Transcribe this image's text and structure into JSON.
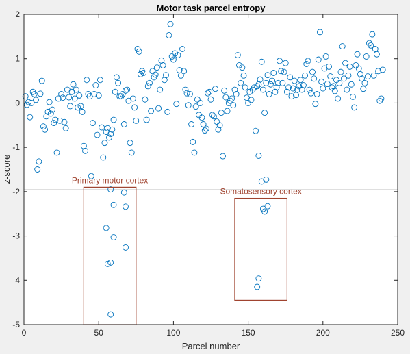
{
  "chart_data": {
    "type": "scatter",
    "title": "Motor task parcel entropy",
    "xlabel": "Parcel number",
    "ylabel": "z-score",
    "xlim": [
      0,
      250
    ],
    "ylim": [
      -5,
      2
    ],
    "xticks": [
      "0",
      "50",
      "100",
      "150",
      "200",
      "250"
    ],
    "yticks": [
      "2",
      "1",
      "0",
      "-1",
      "-2",
      "-3",
      "-4",
      "-5"
    ],
    "threshold_line": -1.96,
    "grid": false,
    "marker": "open-circle",
    "colors": {
      "marker": "#0072BD",
      "annotation": "#A0432F",
      "threshold": "#808080"
    },
    "annotations": [
      {
        "label": "Primary motor cortex",
        "x_range": [
          40,
          75
        ],
        "y_range": [
          -5,
          -1.9
        ]
      },
      {
        "label": "Somatosensory cortex",
        "x_range": [
          141,
          176
        ],
        "y_range": [
          -2.15,
          -4.45
        ]
      }
    ],
    "series": [
      {
        "points": [
          [
            1,
            0.15
          ],
          [
            2,
            -0.04
          ],
          [
            3,
            0.02
          ],
          [
            4,
            -0.32
          ],
          [
            5,
            0.0
          ],
          [
            6,
            0.25
          ],
          [
            7,
            0.2
          ],
          [
            8,
            0.07
          ],
          [
            9,
            -1.5
          ],
          [
            10,
            -1.32
          ],
          [
            11,
            0.21
          ],
          [
            12,
            0.5
          ],
          [
            13,
            -0.53
          ],
          [
            14,
            -0.6
          ],
          [
            15,
            -0.3
          ],
          [
            16,
            -0.2
          ],
          [
            17,
            0.02
          ],
          [
            18,
            -0.24
          ],
          [
            19,
            -0.15
          ],
          [
            20,
            -0.45
          ],
          [
            21,
            -0.38
          ],
          [
            22,
            -1.12
          ],
          [
            23,
            0.1
          ],
          [
            24,
            -0.4
          ],
          [
            25,
            0.2
          ],
          [
            26,
            0.12
          ],
          [
            27,
            -0.43
          ],
          [
            28,
            -0.57
          ],
          [
            29,
            0.3
          ],
          [
            30,
            0.13
          ],
          [
            31,
            -0.07
          ],
          [
            32,
            0.25
          ],
          [
            33,
            0.42
          ],
          [
            34,
            0.1
          ],
          [
            35,
            0.3
          ],
          [
            36,
            -0.1
          ],
          [
            37,
            0.17
          ],
          [
            38,
            -0.07
          ],
          [
            39,
            -0.2
          ],
          [
            40,
            -0.97
          ],
          [
            41,
            -1.08
          ],
          [
            42,
            0.52
          ],
          [
            43,
            0.2
          ],
          [
            44,
            0.15
          ],
          [
            45,
            -1.65
          ],
          [
            46,
            -0.45
          ],
          [
            47,
            0.2
          ],
          [
            48,
            0.4
          ],
          [
            49,
            -0.72
          ],
          [
            50,
            0.17
          ],
          [
            51,
            0.52
          ],
          [
            52,
            -0.55
          ],
          [
            53,
            -1.23
          ],
          [
            54,
            -0.9
          ],
          [
            55,
            -0.65
          ],
          [
            56,
            -0.57
          ],
          [
            57,
            -0.78
          ],
          [
            58,
            -0.7
          ],
          [
            59,
            -0.6
          ],
          [
            60,
            -0.38
          ],
          [
            61,
            0.25
          ],
          [
            62,
            0.58
          ],
          [
            63,
            0.45
          ],
          [
            64,
            0.15
          ],
          [
            65,
            0.15
          ],
          [
            66,
            0.2
          ],
          [
            67,
            -0.48
          ],
          [
            68,
            0.28
          ],
          [
            69,
            0.3
          ],
          [
            70,
            0.05
          ],
          [
            71,
            -0.9
          ],
          [
            72,
            -1.12
          ],
          [
            73,
            0.1
          ],
          [
            74,
            -0.1
          ],
          [
            75,
            -0.4
          ],
          [
            76,
            1.22
          ],
          [
            77,
            1.16
          ],
          [
            78,
            0.65
          ],
          [
            79,
            0.72
          ],
          [
            80,
            0.68
          ],
          [
            81,
            0.08
          ],
          [
            82,
            -0.38
          ],
          [
            83,
            0.38
          ],
          [
            84,
            0.45
          ],
          [
            85,
            -0.18
          ],
          [
            86,
            0.72
          ],
          [
            87,
            0.58
          ],
          [
            88,
            0.64
          ],
          [
            89,
            0.8
          ],
          [
            90,
            -0.12
          ],
          [
            91,
            0.3
          ],
          [
            92,
            0.96
          ],
          [
            93,
            0.85
          ],
          [
            94,
            0.52
          ],
          [
            95,
            0.63
          ],
          [
            96,
            -0.2
          ],
          [
            97,
            1.53
          ],
          [
            98,
            1.78
          ],
          [
            99,
            1.05
          ],
          [
            100,
            0.98
          ],
          [
            101,
            1.12
          ],
          [
            102,
            -0.02
          ],
          [
            103,
            1.08
          ],
          [
            104,
            0.74
          ],
          [
            105,
            0.62
          ],
          [
            106,
            1.22
          ],
          [
            107,
            0.72
          ],
          [
            108,
            0.3
          ],
          [
            109,
            0.22
          ],
          [
            110,
            -0.05
          ],
          [
            111,
            0.2
          ],
          [
            112,
            -0.48
          ],
          [
            113,
            -0.88
          ],
          [
            114,
            -1.12
          ],
          [
            115,
            -0.08
          ],
          [
            116,
            0.08
          ],
          [
            117,
            -0.27
          ],
          [
            118,
            0.0
          ],
          [
            119,
            -0.33
          ],
          [
            120,
            -0.48
          ],
          [
            121,
            -0.62
          ],
          [
            122,
            -0.58
          ],
          [
            123,
            0.22
          ],
          [
            124,
            0.25
          ],
          [
            125,
            0.08
          ],
          [
            126,
            -0.27
          ],
          [
            127,
            -0.3
          ],
          [
            128,
            0.32
          ],
          [
            129,
            -0.42
          ],
          [
            130,
            -0.6
          ],
          [
            131,
            -0.5
          ],
          [
            132,
            -0.22
          ],
          [
            133,
            -1.2
          ],
          [
            134,
            0.28
          ],
          [
            135,
            0.13
          ],
          [
            136,
            -0.18
          ],
          [
            137,
            0.0
          ],
          [
            138,
            0.05
          ],
          [
            139,
            0.1
          ],
          [
            140,
            -0.05
          ],
          [
            141,
            0.3
          ],
          [
            142,
            0.2
          ],
          [
            143,
            1.08
          ],
          [
            144,
            0.85
          ],
          [
            145,
            0.45
          ],
          [
            146,
            0.8
          ],
          [
            147,
            0.62
          ],
          [
            148,
            0.35
          ],
          [
            149,
            0.12
          ],
          [
            150,
            0.0
          ],
          [
            151,
            0.25
          ],
          [
            152,
            0.07
          ],
          [
            153,
            0.3
          ],
          [
            154,
            0.35
          ],
          [
            155,
            -0.63
          ],
          [
            156,
            0.38
          ],
          [
            157,
            0.42
          ],
          [
            158,
            0.53
          ],
          [
            159,
            0.93
          ],
          [
            160,
            0.3
          ],
          [
            161,
            -0.22
          ],
          [
            162,
            0.45
          ],
          [
            163,
            0.63
          ],
          [
            164,
            0.2
          ],
          [
            165,
            0.42
          ],
          [
            166,
            0.5
          ],
          [
            167,
            0.68
          ],
          [
            168,
            0.25
          ],
          [
            169,
            0.35
          ],
          [
            170,
            0.45
          ],
          [
            171,
            0.95
          ],
          [
            172,
            0.72
          ],
          [
            173,
            0.45
          ],
          [
            174,
            0.7
          ],
          [
            175,
            0.9
          ],
          [
            176,
            0.25
          ],
          [
            177,
            0.35
          ],
          [
            178,
            0.58
          ],
          [
            179,
            0.15
          ],
          [
            180,
            0.33
          ],
          [
            181,
            0.5
          ],
          [
            182,
            0.18
          ],
          [
            183,
            0.3
          ],
          [
            184,
            0.38
          ],
          [
            185,
            0.52
          ],
          [
            186,
            0.3
          ],
          [
            187,
            0.4
          ],
          [
            188,
            0.62
          ],
          [
            189,
            0.88
          ],
          [
            190,
            0.95
          ],
          [
            191,
            0.3
          ],
          [
            192,
            0.22
          ],
          [
            193,
            0.7
          ],
          [
            194,
            0.55
          ],
          [
            195,
            -0.02
          ],
          [
            196,
            0.2
          ],
          [
            197,
            0.98
          ],
          [
            198,
            1.6
          ],
          [
            199,
            0.48
          ],
          [
            200,
            0.33
          ],
          [
            201,
            0.78
          ],
          [
            202,
            1.05
          ],
          [
            203,
            0.43
          ],
          [
            204,
            0.82
          ],
          [
            205,
            0.6
          ],
          [
            206,
            0.35
          ],
          [
            207,
            0.38
          ],
          [
            208,
            0.27
          ],
          [
            209,
            0.52
          ],
          [
            210,
            0.1
          ],
          [
            211,
            0.45
          ],
          [
            212,
            0.7
          ],
          [
            213,
            1.28
          ],
          [
            214,
            0.55
          ],
          [
            215,
            0.9
          ],
          [
            216,
            0.3
          ],
          [
            217,
            0.62
          ],
          [
            218,
            0.82
          ],
          [
            219,
            0.42
          ],
          [
            220,
            0.14
          ],
          [
            221,
            -0.1
          ],
          [
            222,
            0.85
          ],
          [
            223,
            1.1
          ],
          [
            224,
            0.78
          ],
          [
            225,
            0.65
          ],
          [
            226,
            0.55
          ],
          [
            227,
            0.32
          ],
          [
            228,
            0.45
          ],
          [
            229,
            1.05
          ],
          [
            230,
            0.6
          ],
          [
            231,
            1.35
          ],
          [
            232,
            1.3
          ],
          [
            233,
            1.55
          ],
          [
            234,
            0.62
          ],
          [
            235,
            1.22
          ],
          [
            236,
            1.1
          ],
          [
            237,
            0.72
          ],
          [
            238,
            0.05
          ],
          [
            239,
            0.1
          ],
          [
            240,
            0.75
          ],
          [
            58,
            -1.95
          ],
          [
            60,
            -2.3
          ],
          [
            67,
            -2.02
          ],
          [
            55,
            -2.82
          ],
          [
            60,
            -3.03
          ],
          [
            68,
            -2.34
          ],
          [
            68,
            -3.26
          ],
          [
            56,
            -3.63
          ],
          [
            58,
            -3.6
          ],
          [
            58,
            -4.77
          ],
          [
            159,
            -1.77
          ],
          [
            162,
            -1.73
          ],
          [
            160,
            -2.39
          ],
          [
            161,
            -2.45
          ],
          [
            163,
            -2.33
          ],
          [
            156,
            -4.15
          ],
          [
            157,
            -3.96
          ],
          [
            157,
            -1.19
          ]
        ]
      }
    ]
  }
}
